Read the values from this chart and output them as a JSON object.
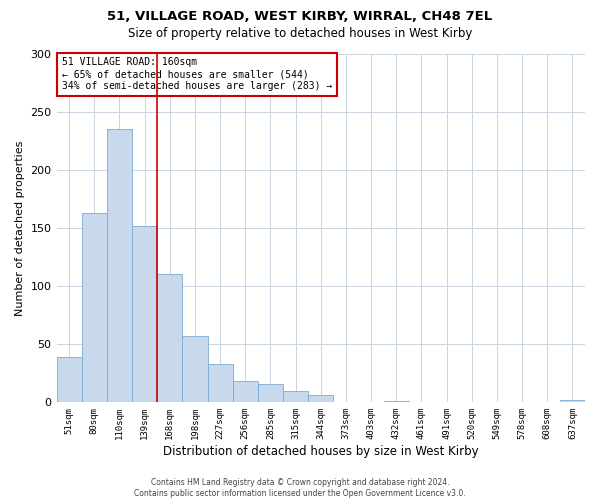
{
  "title1": "51, VILLAGE ROAD, WEST KIRBY, WIRRAL, CH48 7EL",
  "title2": "Size of property relative to detached houses in West Kirby",
  "xlabel": "Distribution of detached houses by size in West Kirby",
  "ylabel": "Number of detached properties",
  "bar_color": "#c8d8ed",
  "bar_edge_color": "#7aaad0",
  "categories": [
    "51sqm",
    "80sqm",
    "110sqm",
    "139sqm",
    "168sqm",
    "198sqm",
    "227sqm",
    "256sqm",
    "285sqm",
    "315sqm",
    "344sqm",
    "373sqm",
    "403sqm",
    "432sqm",
    "461sqm",
    "491sqm",
    "520sqm",
    "549sqm",
    "578sqm",
    "608sqm",
    "637sqm"
  ],
  "values": [
    39,
    163,
    235,
    152,
    110,
    57,
    33,
    18,
    15,
    9,
    6,
    0,
    0,
    1,
    0,
    0,
    0,
    0,
    0,
    0,
    2
  ],
  "ylim": [
    0,
    300
  ],
  "yticks": [
    0,
    50,
    100,
    150,
    200,
    250,
    300
  ],
  "vline_color": "#cc0000",
  "annotation_title": "51 VILLAGE ROAD: 160sqm",
  "annotation_line1": "← 65% of detached houses are smaller (544)",
  "annotation_line2": "34% of semi-detached houses are larger (283) →",
  "annotation_box_color": "#cc0000",
  "footer1": "Contains HM Land Registry data © Crown copyright and database right 2024.",
  "footer2": "Contains public sector information licensed under the Open Government Licence v3.0.",
  "bg_color": "#ffffff",
  "grid_color": "#c8d4e0"
}
